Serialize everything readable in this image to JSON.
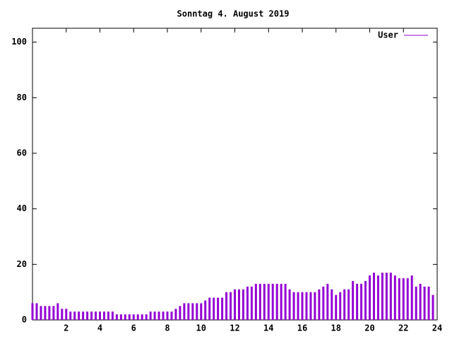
{
  "chart_data": {
    "type": "impulse",
    "title": "Sonntag 4. August 2019",
    "x": [
      0,
      0.25,
      0.5,
      0.75,
      1,
      1.25,
      1.5,
      1.75,
      2,
      2.25,
      2.5,
      2.75,
      3,
      3.25,
      3.5,
      3.75,
      4,
      4.25,
      4.5,
      4.75,
      5,
      5.25,
      5.5,
      5.75,
      6,
      6.25,
      6.5,
      6.75,
      7,
      7.25,
      7.5,
      7.75,
      8,
      8.25,
      8.5,
      8.75,
      9,
      9.25,
      9.5,
      9.75,
      10,
      10.25,
      10.5,
      10.75,
      11,
      11.25,
      11.5,
      11.75,
      12,
      12.25,
      12.5,
      12.75,
      13,
      13.25,
      13.5,
      13.75,
      14,
      14.25,
      14.5,
      14.75,
      15,
      15.25,
      15.5,
      15.75,
      16,
      16.25,
      16.5,
      16.75,
      17,
      17.25,
      17.5,
      17.75,
      18,
      18.25,
      18.5,
      18.75,
      19,
      19.25,
      19.5,
      19.75,
      20,
      20.25,
      20.5,
      20.75,
      21,
      21.25,
      21.5,
      21.75,
      22,
      22.25,
      22.5,
      22.75,
      23,
      23.25,
      23.5,
      23.75
    ],
    "series": [
      {
        "name": "User",
        "color": "#9400d3",
        "values": [
          6,
          6,
          5,
          5,
          5,
          5,
          6,
          4,
          4,
          3,
          3,
          3,
          3,
          3,
          3,
          3,
          3,
          3,
          3,
          3,
          2,
          2,
          2,
          2,
          2,
          2,
          2,
          2,
          3,
          3,
          3,
          3,
          3,
          3,
          4,
          5,
          6,
          6,
          6,
          6,
          6,
          7,
          8,
          8,
          8,
          8,
          10,
          10,
          11,
          11,
          11,
          12,
          12,
          13,
          13,
          13,
          13,
          13,
          13,
          13,
          13,
          11,
          10,
          10,
          10,
          10,
          10,
          10,
          11,
          12,
          13,
          11,
          9,
          10,
          11,
          11,
          14,
          13,
          13,
          14,
          16,
          17,
          16,
          17,
          17,
          17,
          16,
          15,
          15,
          15,
          16,
          12,
          13,
          12,
          12,
          9
        ]
      }
    ],
    "xlim": [
      0,
      24
    ],
    "xticks": [
      2,
      4,
      6,
      8,
      10,
      12,
      14,
      16,
      18,
      20,
      22,
      24
    ],
    "ylim": [
      0,
      105
    ],
    "yticks": [
      0,
      20,
      40,
      60,
      80,
      100
    ],
    "legend": "top-right"
  }
}
